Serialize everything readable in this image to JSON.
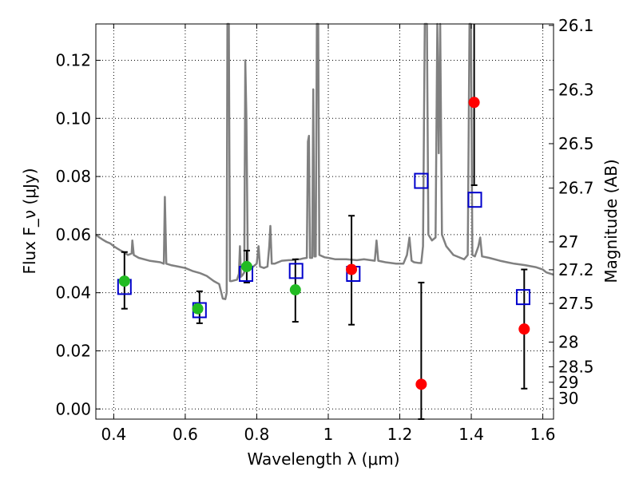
{
  "chart_data": {
    "type": "scatter",
    "xlabel": "Wavelength λ (μm)",
    "ylabel": "Flux F_ν (μJy)",
    "y2label": "Magnitude (AB)",
    "xlim": [
      0.35,
      1.63
    ],
    "ylim": [
      -0.0035,
      0.1325
    ],
    "grid": true,
    "x_ticks": [
      0.4,
      0.6,
      0.8,
      1.0,
      1.2,
      1.4,
      1.6
    ],
    "x_tick_labels": [
      "0.4",
      "0.6",
      "0.8",
      "1",
      "1.2",
      "1.4",
      "1.6"
    ],
    "y_ticks": [
      0.0,
      0.02,
      0.04,
      0.06,
      0.08,
      0.1,
      0.12
    ],
    "y_tick_labels": [
      "0.00",
      "0.02",
      "0.04",
      "0.06",
      "0.08",
      "0.10",
      "0.12"
    ],
    "magnitude_ticks": [
      {
        "label": "26.1",
        "flux": 0.132
      },
      {
        "label": "26.3",
        "flux": 0.1098
      },
      {
        "label": "26.5",
        "flux": 0.0913
      },
      {
        "label": "26.7",
        "flux": 0.076
      },
      {
        "label": "27",
        "flux": 0.0575
      },
      {
        "label": "27.2",
        "flux": 0.0479
      },
      {
        "label": "27.5",
        "flux": 0.0363
      },
      {
        "label": "28",
        "flux": 0.023
      },
      {
        "label": "28.5",
        "flux": 0.0145
      },
      {
        "label": "29",
        "flux": 0.0092
      },
      {
        "label": "30",
        "flux": 0.0036
      }
    ],
    "series": [
      {
        "kind": "line",
        "color": "#808080",
        "points": [
          [
            0.35,
            0.06
          ],
          [
            0.36,
            0.059
          ],
          [
            0.37,
            0.0582
          ],
          [
            0.38,
            0.0575
          ],
          [
            0.39,
            0.057
          ],
          [
            0.4,
            0.056
          ],
          [
            0.41,
            0.0552
          ],
          [
            0.42,
            0.0545
          ],
          [
            0.43,
            0.0538
          ],
          [
            0.44,
            0.053
          ],
          [
            0.45,
            0.0535
          ],
          [
            0.452,
            0.058
          ],
          [
            0.456,
            0.053
          ],
          [
            0.47,
            0.052
          ],
          [
            0.5,
            0.051
          ],
          [
            0.53,
            0.0505
          ],
          [
            0.54,
            0.05
          ],
          [
            0.543,
            0.073
          ],
          [
            0.547,
            0.05
          ],
          [
            0.56,
            0.0495
          ],
          [
            0.58,
            0.049
          ],
          [
            0.6,
            0.0485
          ],
          [
            0.62,
            0.0475
          ],
          [
            0.64,
            0.0468
          ],
          [
            0.66,
            0.0458
          ],
          [
            0.68,
            0.044
          ],
          [
            0.695,
            0.043
          ],
          [
            0.705,
            0.038
          ],
          [
            0.712,
            0.0378
          ],
          [
            0.716,
            0.04
          ],
          [
            0.718,
            0.133
          ],
          [
            0.722,
            0.133
          ],
          [
            0.725,
            0.044
          ],
          [
            0.73,
            0.044
          ],
          [
            0.745,
            0.0445
          ],
          [
            0.75,
            0.0465
          ],
          [
            0.753,
            0.056
          ],
          [
            0.756,
            0.0455
          ],
          [
            0.76,
            0.046
          ],
          [
            0.765,
            0.047
          ],
          [
            0.768,
            0.12
          ],
          [
            0.771,
            0.1
          ],
          [
            0.775,
            0.049
          ],
          [
            0.78,
            0.048
          ],
          [
            0.8,
            0.05
          ],
          [
            0.805,
            0.056
          ],
          [
            0.809,
            0.049
          ],
          [
            0.82,
            0.0485
          ],
          [
            0.83,
            0.049
          ],
          [
            0.835,
            0.056
          ],
          [
            0.838,
            0.063
          ],
          [
            0.842,
            0.05
          ],
          [
            0.85,
            0.05
          ],
          [
            0.87,
            0.051
          ],
          [
            0.89,
            0.0512
          ],
          [
            0.9,
            0.0512
          ],
          [
            0.91,
            0.0515
          ],
          [
            0.92,
            0.0515
          ],
          [
            0.93,
            0.0518
          ],
          [
            0.94,
            0.052
          ],
          [
            0.943,
            0.092
          ],
          [
            0.946,
            0.094
          ],
          [
            0.949,
            0.052
          ],
          [
            0.955,
            0.052
          ],
          [
            0.958,
            0.11
          ],
          [
            0.961,
            0.0525
          ],
          [
            0.965,
            0.0525
          ],
          [
            0.968,
            0.133
          ],
          [
            0.972,
            0.133
          ],
          [
            0.975,
            0.053
          ],
          [
            0.99,
            0.0522
          ],
          [
            1.0,
            0.052
          ],
          [
            1.02,
            0.0515
          ],
          [
            1.05,
            0.0515
          ],
          [
            1.08,
            0.0512
          ],
          [
            1.1,
            0.0515
          ],
          [
            1.13,
            0.051
          ],
          [
            1.135,
            0.058
          ],
          [
            1.14,
            0.051
          ],
          [
            1.16,
            0.0505
          ],
          [
            1.19,
            0.05
          ],
          [
            1.21,
            0.05
          ],
          [
            1.22,
            0.053
          ],
          [
            1.227,
            0.059
          ],
          [
            1.233,
            0.051
          ],
          [
            1.24,
            0.0505
          ],
          [
            1.25,
            0.0503
          ],
          [
            1.26,
            0.0502
          ],
          [
            1.265,
            0.056
          ],
          [
            1.27,
            0.133
          ],
          [
            1.276,
            0.133
          ],
          [
            1.28,
            0.06
          ],
          [
            1.29,
            0.058
          ],
          [
            1.3,
            0.059
          ],
          [
            1.305,
            0.133
          ],
          [
            1.309,
            0.088
          ],
          [
            1.313,
            0.133
          ],
          [
            1.318,
            0.06
          ],
          [
            1.33,
            0.056
          ],
          [
            1.35,
            0.053
          ],
          [
            1.37,
            0.052
          ],
          [
            1.38,
            0.0515
          ],
          [
            1.39,
            0.053
          ],
          [
            1.395,
            0.133
          ],
          [
            1.399,
            0.133
          ],
          [
            1.403,
            0.053
          ],
          [
            1.41,
            0.0525
          ],
          [
            1.42,
            0.056
          ],
          [
            1.425,
            0.059
          ],
          [
            1.43,
            0.0525
          ],
          [
            1.45,
            0.052
          ],
          [
            1.48,
            0.051
          ],
          [
            1.5,
            0.0505
          ],
          [
            1.52,
            0.05
          ],
          [
            1.55,
            0.0495
          ],
          [
            1.58,
            0.0488
          ],
          [
            1.6,
            0.048
          ],
          [
            1.61,
            0.047
          ],
          [
            1.63,
            0.0462
          ]
        ]
      },
      {
        "kind": "marker",
        "marker": "square",
        "color": "#0000cc",
        "points": [
          [
            0.43,
            0.042
          ],
          [
            0.64,
            0.034
          ],
          [
            0.77,
            0.0465
          ],
          [
            0.91,
            0.0475
          ],
          [
            1.07,
            0.0465
          ],
          [
            1.26,
            0.0785
          ],
          [
            1.41,
            0.072
          ],
          [
            1.545,
            0.0385
          ]
        ]
      },
      {
        "kind": "marker",
        "marker": "circle",
        "color": "#22bb22",
        "points": [
          [
            0.43,
            0.044
          ],
          [
            0.635,
            0.0345
          ],
          [
            0.772,
            0.049
          ],
          [
            0.908,
            0.041
          ]
        ]
      },
      {
        "kind": "marker",
        "marker": "circle",
        "color": "#ff0000",
        "points": [
          [
            1.065,
            0.048
          ],
          [
            1.26,
            0.0085
          ],
          [
            1.408,
            0.1055
          ],
          [
            1.548,
            0.0275
          ]
        ]
      },
      {
        "kind": "errorbar",
        "color": "#000000",
        "bars": [
          {
            "x": 0.43,
            "low": 0.0345,
            "high": 0.054
          },
          {
            "x": 0.64,
            "low": 0.0295,
            "high": 0.0405
          },
          {
            "x": 0.772,
            "low": 0.0435,
            "high": 0.0545
          },
          {
            "x": 0.908,
            "low": 0.03,
            "high": 0.0515
          },
          {
            "x": 1.065,
            "low": 0.029,
            "high": 0.0665
          },
          {
            "x": 1.26,
            "low": -0.0035,
            "high": 0.0435
          },
          {
            "x": 1.408,
            "low": 0.077,
            "high": 0.133
          },
          {
            "x": 1.548,
            "low": 0.007,
            "high": 0.048
          }
        ]
      }
    ]
  }
}
